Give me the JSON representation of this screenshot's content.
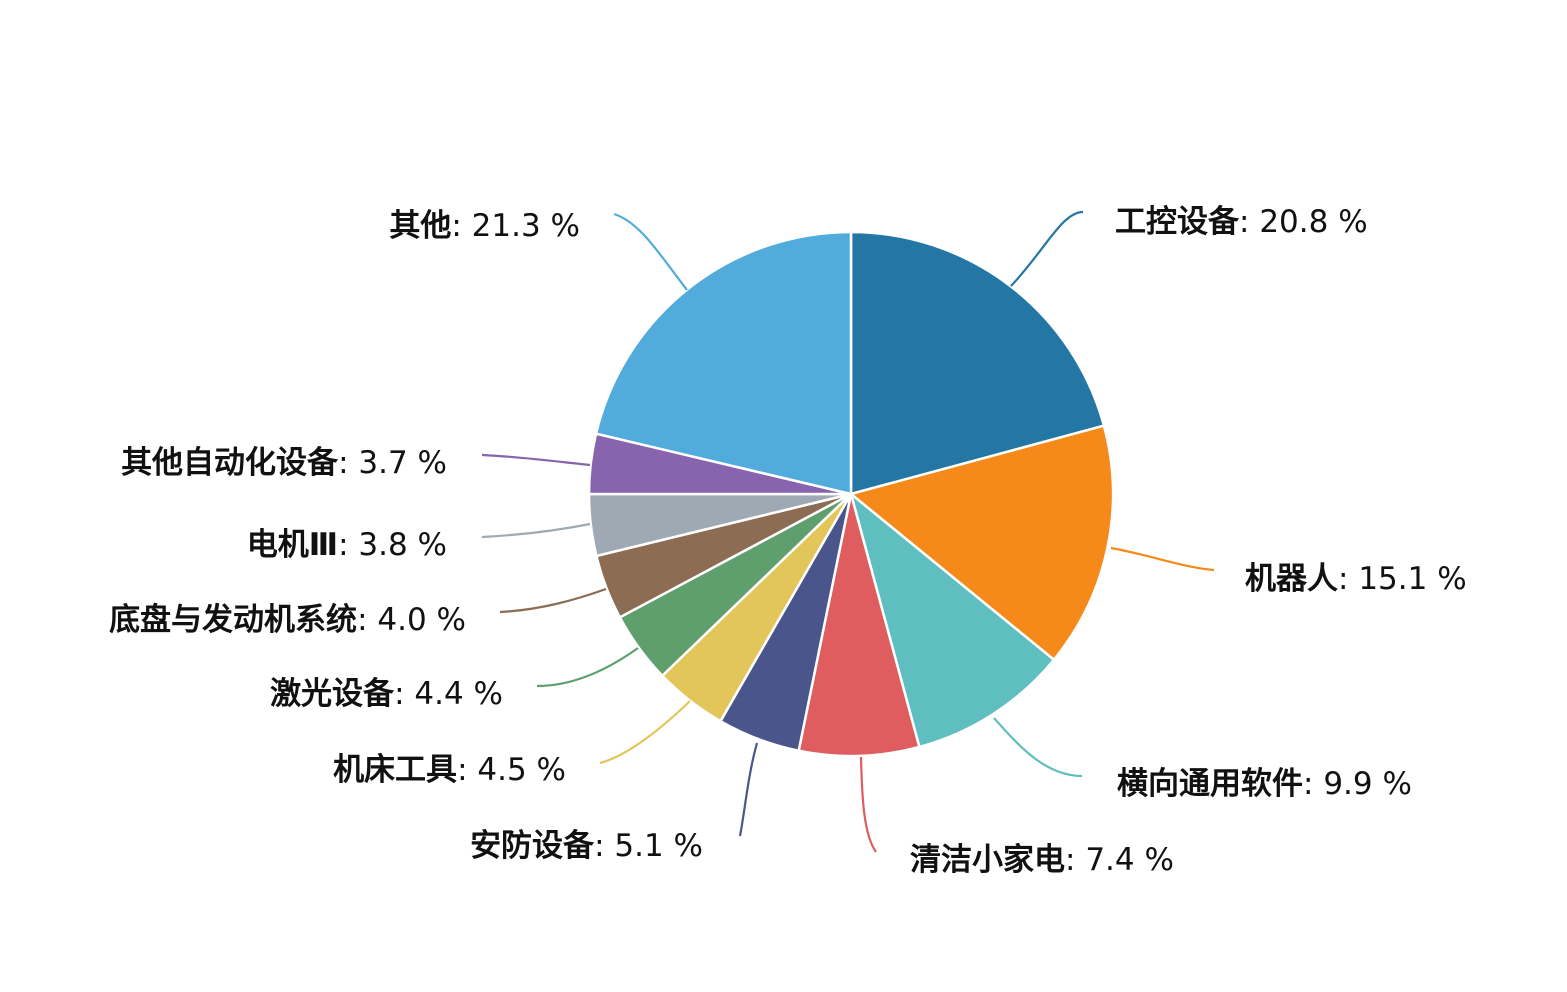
{
  "chart_data": {
    "type": "pie",
    "title": "",
    "start_angle_deg": 0,
    "direction": "clockwise",
    "slices": [
      {
        "name": "工控设备",
        "value": 20.8,
        "value_label": "20.8 %",
        "color": "#2477a4"
      },
      {
        "name": "机器人",
        "value": 15.1,
        "value_label": "15.1 %",
        "color": "#f58a1a"
      },
      {
        "name": "横向通用软件",
        "value": 9.9,
        "value_label": "9.9 %",
        "color": "#5fbebf"
      },
      {
        "name": "清洁小家电",
        "value": 7.4,
        "value_label": "7.4 %",
        "color": "#df5d5f"
      },
      {
        "name": "安防设备",
        "value": 5.1,
        "value_label": "5.1 %",
        "color": "#4a568b"
      },
      {
        "name": "机床工具",
        "value": 4.5,
        "value_label": "4.5 %",
        "color": "#e3c65a"
      },
      {
        "name": "激光设备",
        "value": 4.4,
        "value_label": "4.4 %",
        "color": "#5f9f6e"
      },
      {
        "name": "底盘与发动机系统",
        "value": 4.0,
        "value_label": "4.0 %",
        "color": "#8c6c52"
      },
      {
        "name": "电机Ⅲ",
        "value": 3.8,
        "value_label": "3.8 %",
        "color": "#9fa9b3"
      },
      {
        "name": "其他自动化设备",
        "value": 3.7,
        "value_label": "3.7 %",
        "color": "#8764ad"
      },
      {
        "name": "其他",
        "value": 21.3,
        "value_label": "21.3 %",
        "color": "#52acdb"
      }
    ]
  }
}
